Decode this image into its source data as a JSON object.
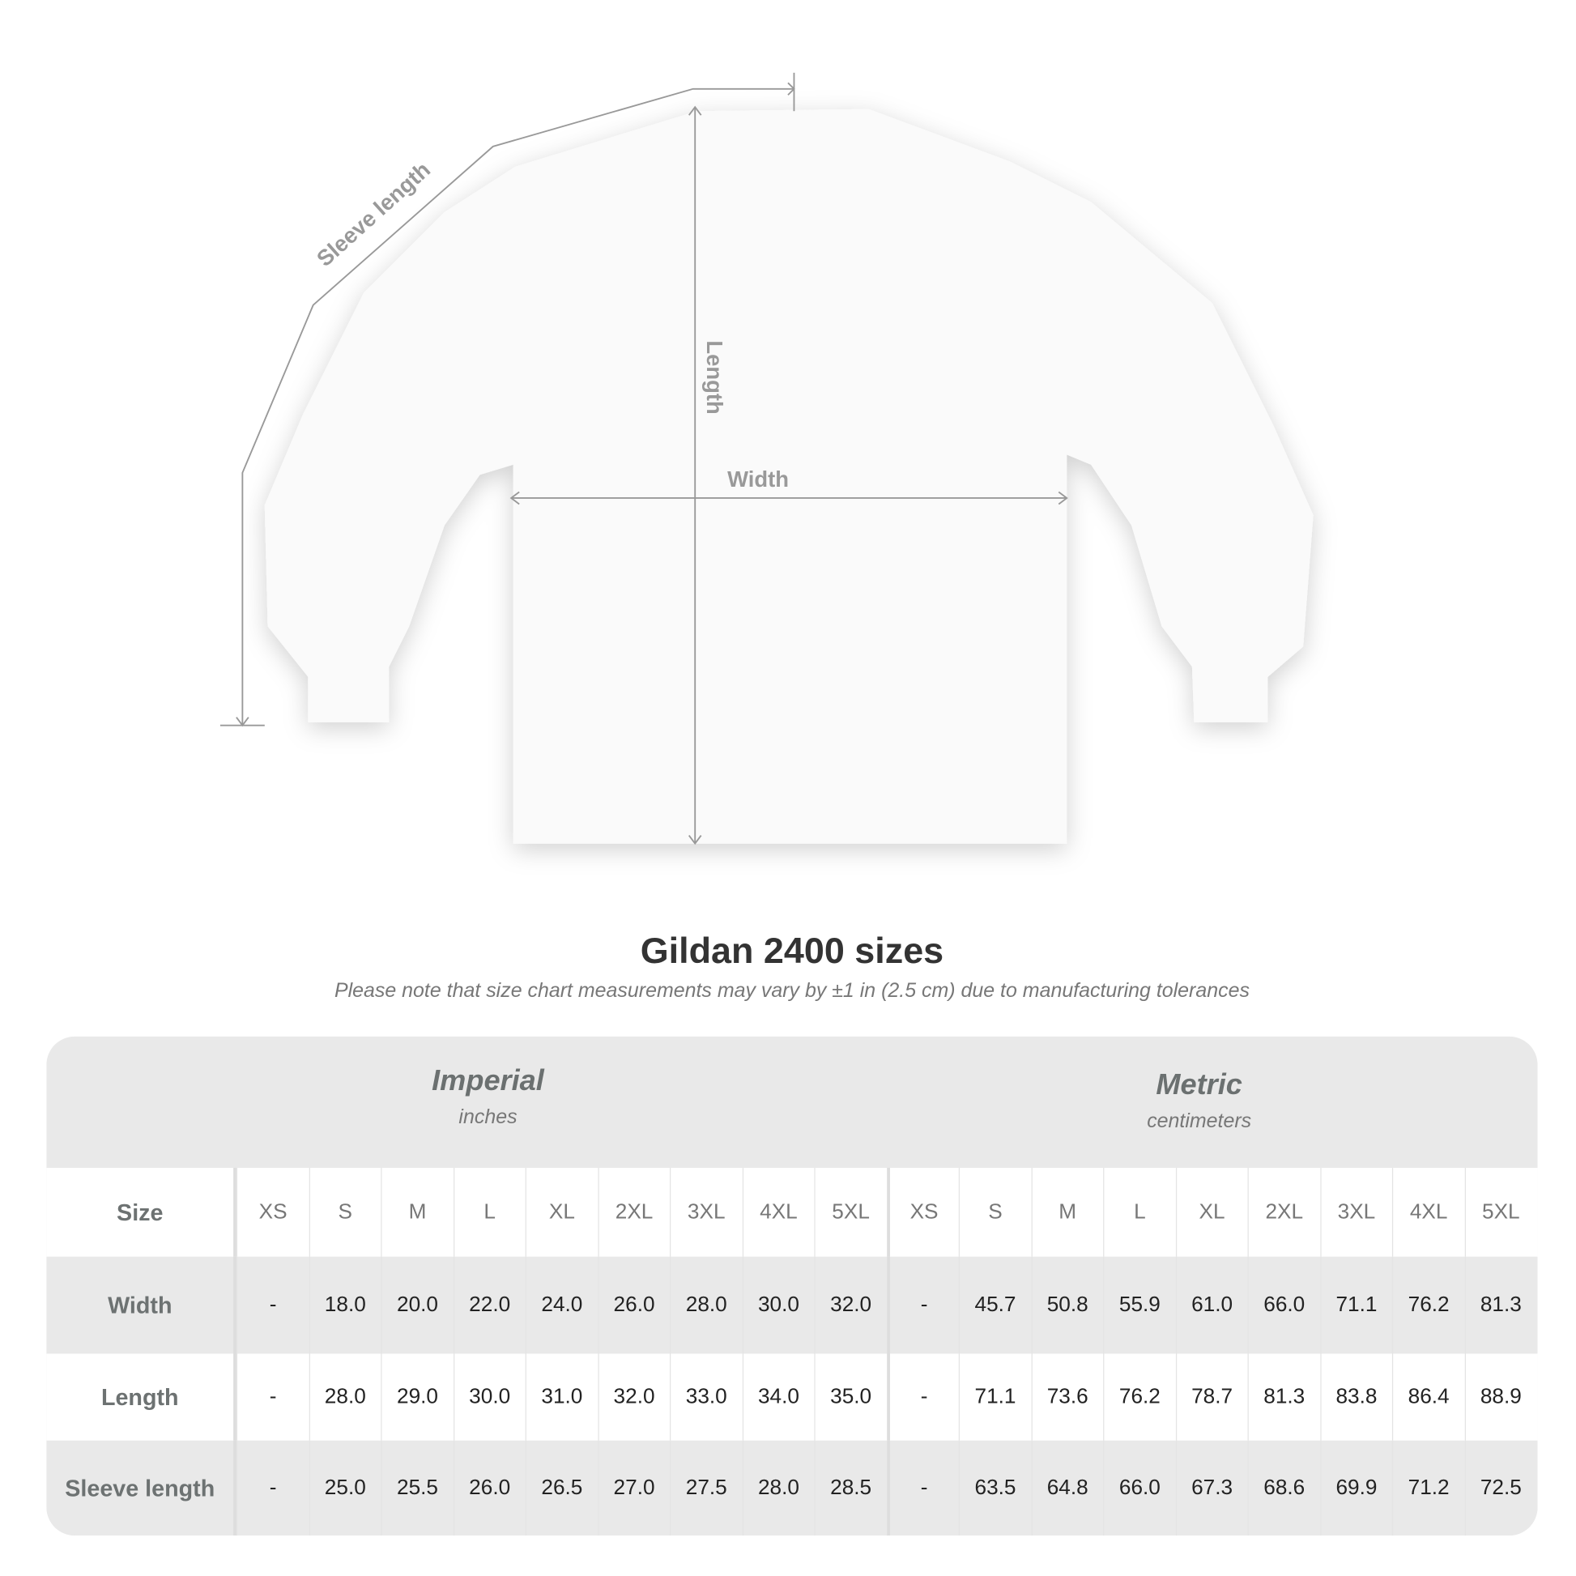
{
  "diagram_labels": {
    "sleeve": "Sleeve length",
    "length": "Length",
    "width": "Width"
  },
  "title": "Gildan 2400 sizes",
  "note": "Please note that size chart measurements may vary by ±1 in (2.5 cm) due to manufacturing tolerances",
  "systems": [
    {
      "name": "Imperial",
      "unit": "inches"
    },
    {
      "name": "Metric",
      "unit": "centimeters"
    }
  ],
  "table": {
    "header_label": "Size",
    "sizes": [
      "XS",
      "S",
      "M",
      "L",
      "XL",
      "2XL",
      "3XL",
      "4XL",
      "5XL",
      "XS",
      "S",
      "M",
      "L",
      "XL",
      "2XL",
      "3XL",
      "4XL",
      "5XL"
    ],
    "rows": [
      {
        "label": "Width",
        "values": [
          "-",
          "18.0",
          "20.0",
          "22.0",
          "24.0",
          "26.0",
          "28.0",
          "30.0",
          "32.0",
          "-",
          "45.7",
          "50.8",
          "55.9",
          "61.0",
          "66.0",
          "71.1",
          "76.2",
          "81.3"
        ]
      },
      {
        "label": "Length",
        "values": [
          "-",
          "28.0",
          "29.0",
          "30.0",
          "31.0",
          "32.0",
          "33.0",
          "34.0",
          "35.0",
          "-",
          "71.1",
          "73.6",
          "76.2",
          "78.7",
          "81.3",
          "83.8",
          "86.4",
          "88.9"
        ]
      },
      {
        "label": "Sleeve length",
        "values": [
          "-",
          "25.0",
          "25.5",
          "26.0",
          "26.5",
          "27.0",
          "27.5",
          "28.0",
          "28.5",
          "-",
          "63.5",
          "64.8",
          "66.0",
          "67.3",
          "68.6",
          "69.9",
          "71.2",
          "72.5"
        ]
      }
    ]
  }
}
